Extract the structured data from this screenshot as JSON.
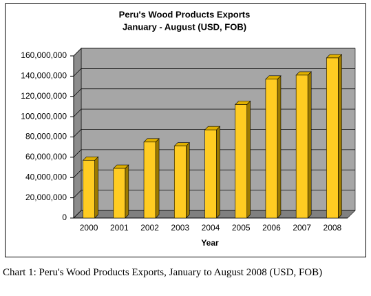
{
  "chart_data": {
    "type": "bar",
    "title": "Peru's Wood Products Exports",
    "subtitle": "January - August (USD, FOB)",
    "x_label": "Year",
    "categories": [
      "2000",
      "2001",
      "2002",
      "2003",
      "2004",
      "2005",
      "2006",
      "2007",
      "2008"
    ],
    "values": [
      57000000,
      49000000,
      75000000,
      71000000,
      87000000,
      112000000,
      137000000,
      141000000,
      158000000
    ],
    "color": "#ffcc22",
    "ylim": [
      0,
      160000000
    ],
    "yticks": [
      0,
      {
        "value": 20000000,
        "label": "20,000,000"
      },
      {
        "value": 40000000,
        "label": "40,000,000"
      },
      {
        "value": 60000000,
        "label": "60,000,000"
      },
      {
        "value": 80000000,
        "label": "80,000,000"
      },
      {
        "value": 100000000,
        "label": "100,000,000"
      },
      {
        "value": 120000000,
        "label": "120,000,000"
      },
      {
        "value": 140000000,
        "label": "140,000,000"
      },
      {
        "value": 160000000,
        "label": "160,000,000"
      }
    ],
    "grid": true
  },
  "caption": "Chart 1: Peru's Wood Products Exports, January to August 2008 (USD, FOB)"
}
